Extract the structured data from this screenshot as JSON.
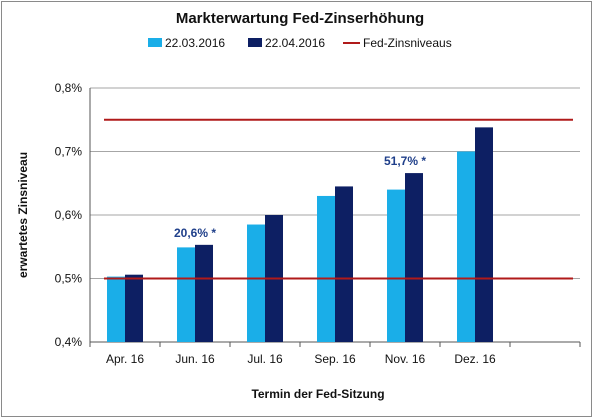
{
  "chart_data": {
    "type": "bar",
    "title": "Markterwartung Fed-Zinserhöhung",
    "xlabel": "Termin der Fed-Sitzung",
    "ylabel": "erwartetes Zinsniveau",
    "categories": [
      "Apr. 16",
      "Jun. 16",
      "Jul. 16",
      "Sep. 16",
      "Nov. 16",
      "Dez. 16"
    ],
    "series": [
      {
        "name": "22.03.2016",
        "color": "#1aaee8",
        "values": [
          0.503,
          0.549,
          0.585,
          0.63,
          0.64,
          0.7
        ]
      },
      {
        "name": "22.04.2016",
        "color": "#0d1f63",
        "values": [
          0.506,
          0.553,
          0.6,
          0.645,
          0.666,
          0.738
        ]
      }
    ],
    "reference_lines": {
      "name": "Fed-Zinsniveaus",
      "color": "#b01a1a",
      "values": [
        0.75,
        0.5
      ]
    },
    "ylim": [
      0.4,
      0.8
    ],
    "yticks": [
      "0,4%",
      "0,5%",
      "0,6%",
      "0,7%",
      "0,8%"
    ],
    "ytick_values": [
      0.4,
      0.5,
      0.6,
      0.7,
      0.8
    ],
    "grid": true,
    "legend": "top",
    "annotations": [
      {
        "text": "20,6% *",
        "category": "Jun. 16",
        "color": "#1f3f8a"
      },
      {
        "text": "51,7% *",
        "category": "Nov. 16",
        "color": "#1f3f8a"
      }
    ]
  }
}
